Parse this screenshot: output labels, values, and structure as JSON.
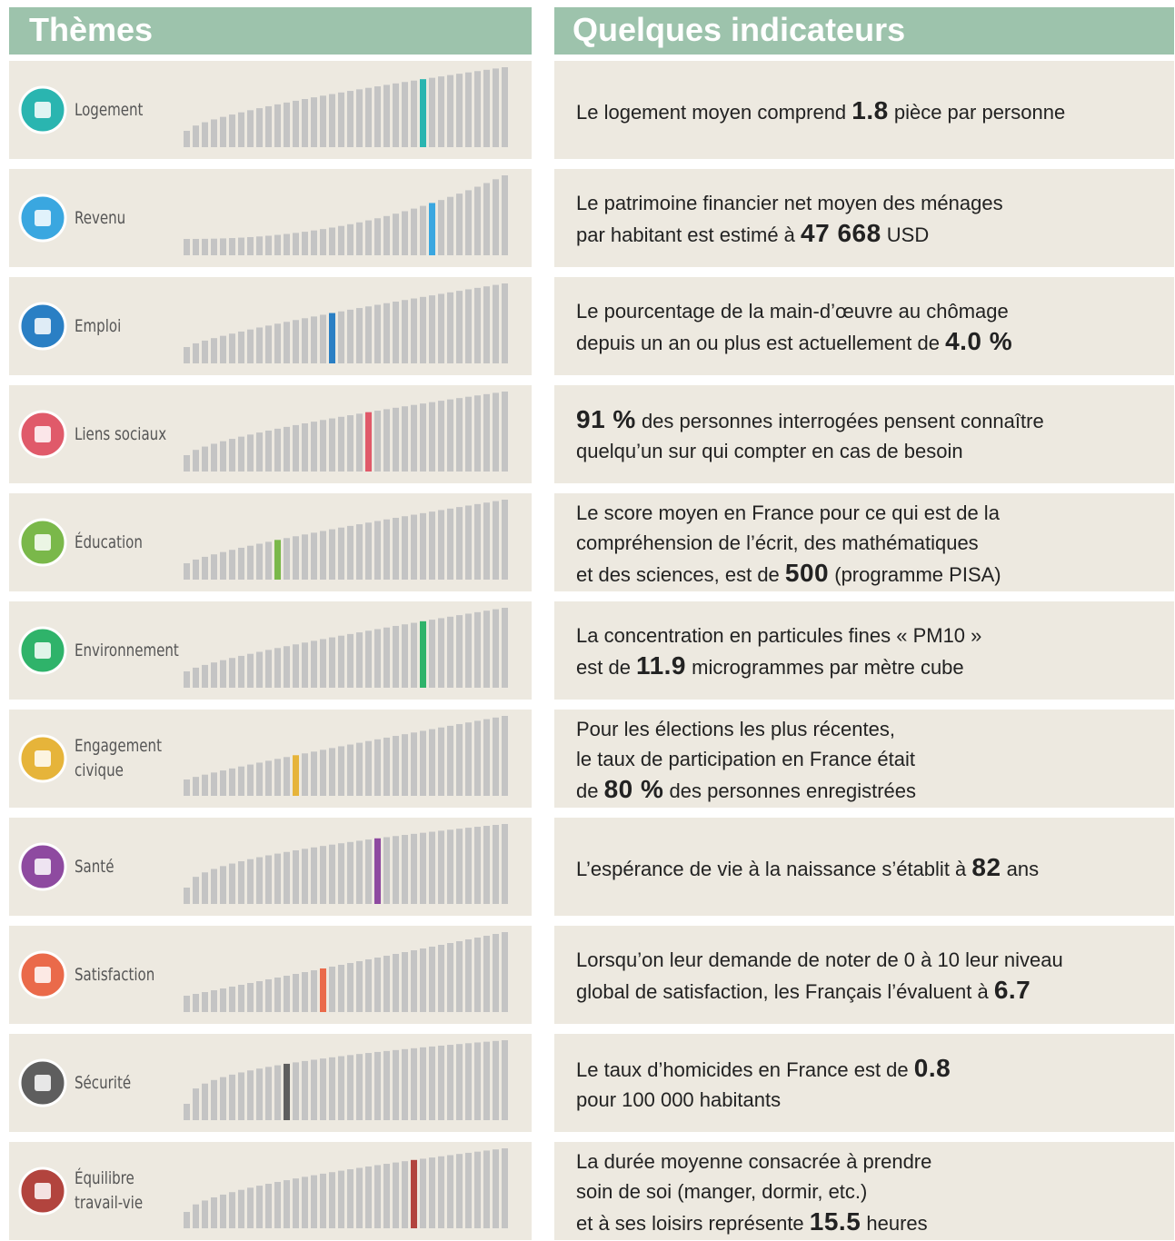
{
  "header": {
    "themes": "Thèmes",
    "indicators": "Quelques indicateurs"
  },
  "rows": [
    {
      "theme": [
        "Logement"
      ],
      "indicator": [
        [
          {
            "text": "Le logement moyen comprend "
          },
          {
            "text": "1.8",
            "strong": true
          },
          {
            "text": " pièce par personne"
          }
        ]
      ]
    },
    {
      "theme": [
        "Revenu"
      ],
      "indicator": [
        [
          {
            "text": "Le patrimoine financier net moyen des ménages"
          }
        ],
        [
          {
            "text": "par habitant est estimé à "
          },
          {
            "text": "47 668",
            "strong": true
          },
          {
            "text": " USD"
          }
        ]
      ]
    },
    {
      "theme": [
        "Emploi"
      ],
      "indicator": [
        [
          {
            "text": "Le pourcentage de la main-d’œuvre au chômage"
          }
        ],
        [
          {
            "text": "depuis un an ou plus est actuellement de "
          },
          {
            "text": "4.0 %",
            "strong": true
          }
        ]
      ]
    },
    {
      "theme": [
        "Liens sociaux"
      ],
      "indicator": [
        [
          {
            "text": "91 %",
            "strong": true
          },
          {
            "text": " des personnes interrogées pensent connaître"
          }
        ],
        [
          {
            "text": "quelqu’un sur qui compter en cas de besoin"
          }
        ]
      ]
    },
    {
      "theme": [
        "Éducation"
      ],
      "indicator": [
        [
          {
            "text": "Le score moyen en France pour ce qui est de la"
          }
        ],
        [
          {
            "text": "compréhension de l’écrit, des mathématiques"
          }
        ],
        [
          {
            "text": "et des sciences, est de "
          },
          {
            "text": "500",
            "strong": true
          },
          {
            "text": " (programme PISA)"
          }
        ]
      ]
    },
    {
      "theme": [
        "Environnement"
      ],
      "indicator": [
        [
          {
            "text": "La concentration en particules fines « PM10 »"
          }
        ],
        [
          {
            "text": "est de "
          },
          {
            "text": "11.9",
            "strong": true
          },
          {
            "text": " microgrammes par mètre cube"
          }
        ]
      ]
    },
    {
      "theme": [
        "Engagement",
        "civique"
      ],
      "indicator": [
        [
          {
            "text": "Pour les élections les plus récentes,"
          }
        ],
        [
          {
            "text": "le taux de participation en France était"
          }
        ],
        [
          {
            "text": "de "
          },
          {
            "text": "80 %",
            "strong": true
          },
          {
            "text": " des personnes enregistrées"
          }
        ]
      ]
    },
    {
      "theme": [
        "Santé"
      ],
      "indicator": [
        [
          {
            "text": "L’espérance de vie à la naissance s’établit à "
          },
          {
            "text": "82",
            "strong": true
          },
          {
            "text": " ans"
          }
        ]
      ]
    },
    {
      "theme": [
        "Satisfaction"
      ],
      "indicator": [
        [
          {
            "text": "Lorsqu’on leur demande de noter de 0 à 10 leur niveau"
          }
        ],
        [
          {
            "text": "global de satisfaction, les Français l’évaluent à "
          },
          {
            "text": "6.7",
            "strong": true
          }
        ]
      ]
    },
    {
      "theme": [
        "Sécurité"
      ],
      "indicator": [
        [
          {
            "text": "Le taux d’homicides en France est de "
          },
          {
            "text": "0.8",
            "strong": true
          }
        ],
        [
          {
            "text": "pour 100 000 habitants"
          }
        ]
      ]
    },
    {
      "theme": [
        "Équilibre",
        "travail-vie"
      ],
      "indicator": [
        [
          {
            "text": "La durée moyenne consacrée à prendre"
          }
        ],
        [
          {
            "text": "soin de soi (manger, dormir, etc.)"
          }
        ],
        [
          {
            "text": "et à ses loisirs représente "
          },
          {
            "text": "15.5",
            "strong": true
          },
          {
            "text": " heures"
          }
        ]
      ]
    }
  ]
}
